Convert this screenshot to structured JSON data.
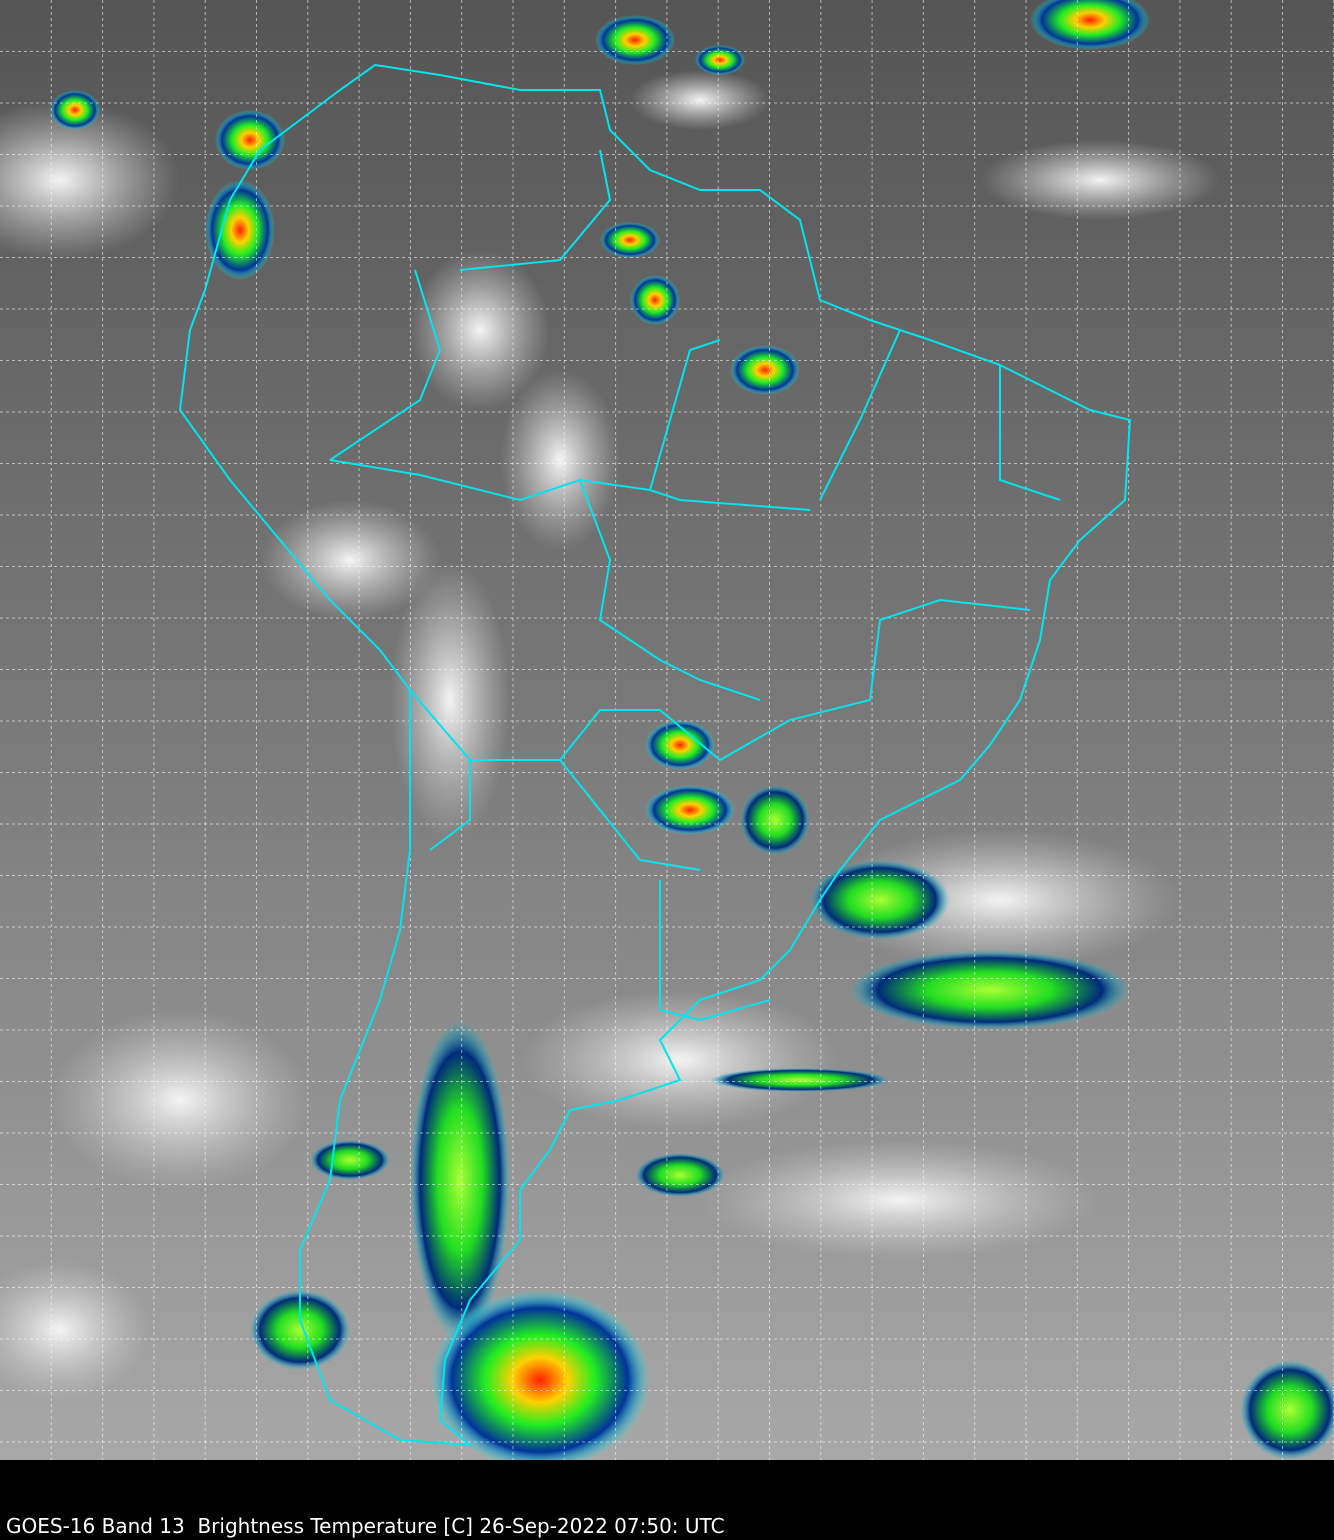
{
  "caption": "GOES-16 Band 13  Brightness Temperature [C] 26-Sep-2022 07:50: UTC",
  "colors": {
    "background": "#000000",
    "borders": "#00e5ee",
    "grid": "#ffffff",
    "cloud_cold": "#00ff44",
    "cloud_colder": "#ff2000",
    "cloud_edge": "#002a7a"
  },
  "map": {
    "satellite": "GOES-16",
    "band": "Band 13",
    "region": "South America",
    "grid": true
  }
}
